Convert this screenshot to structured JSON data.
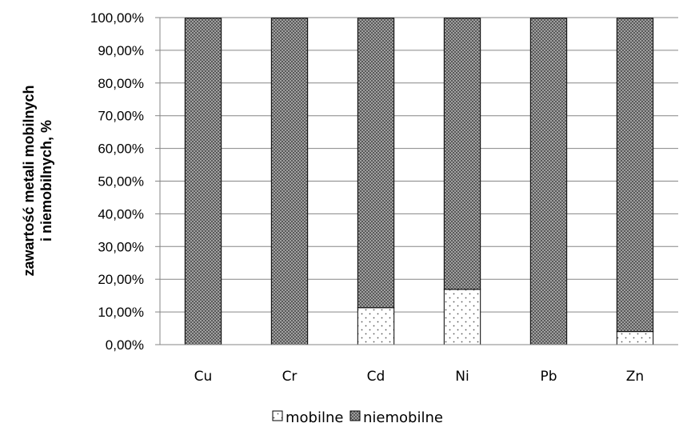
{
  "chart_data": {
    "type": "bar",
    "stacked": true,
    "categories": [
      "Cu",
      "Cr",
      "Cd",
      "Ni",
      "Pb",
      "Zn"
    ],
    "series": [
      {
        "name": "mobilne",
        "values": [
          0.0,
          0.0,
          11.3,
          16.9,
          0.0,
          4.0
        ],
        "pattern": "dots"
      },
      {
        "name": "niemobilne",
        "values": [
          99.8,
          99.8,
          88.5,
          82.9,
          99.8,
          95.8
        ],
        "pattern": "crosshatch"
      }
    ],
    "ylabel_lines": [
      "zawartość metali mobilnych",
      "i niemobilnych, %"
    ],
    "yticks": [
      "0,00%",
      "10,00%",
      "20,00%",
      "30,00%",
      "40,00%",
      "50,00%",
      "60,00%",
      "70,00%",
      "80,00%",
      "90,00%",
      "100,00%"
    ],
    "ylim": [
      0,
      100
    ],
    "grid": true,
    "legend_position": "bottom"
  }
}
